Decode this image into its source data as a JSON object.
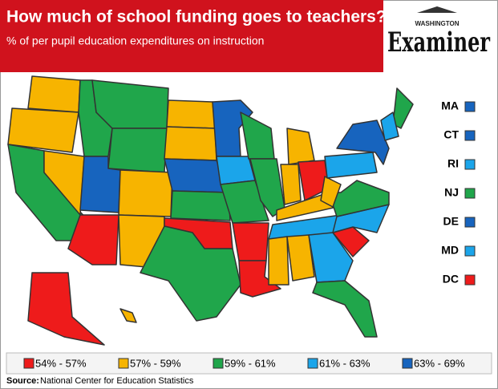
{
  "header": {
    "title": "How much of school funding goes to teachers?",
    "subtitle": "% of per pupil education expenditures on instruction"
  },
  "logo": {
    "top": "WASHINGTON",
    "name": "Examiner"
  },
  "legend": [
    {
      "label": "54% - 57%",
      "color": "#ee1b1b"
    },
    {
      "label": "57% - 59%",
      "color": "#f7b400"
    },
    {
      "label": "59% - 61%",
      "color": "#20a64b"
    },
    {
      "label": "61% - 63%",
      "color": "#1ba5ea"
    },
    {
      "label": "63% - 69%",
      "color": "#1764be"
    }
  ],
  "state_bins": [
    1,
    1,
    2,
    1,
    2,
    2,
    2,
    4,
    0,
    1,
    1,
    1,
    1,
    4,
    2,
    0,
    2,
    4,
    3,
    2,
    0,
    0,
    2,
    2,
    1,
    1,
    0,
    1,
    3,
    1,
    1,
    3,
    2,
    0,
    3,
    2,
    1,
    3,
    4,
    2,
    3,
    0,
    1
  ],
  "small_states": [
    {
      "label": "MA",
      "bin": 4
    },
    {
      "label": "CT",
      "bin": 4
    },
    {
      "label": "RI",
      "bin": 3
    },
    {
      "label": "NJ",
      "bin": 2
    },
    {
      "label": "DE",
      "bin": 4
    },
    {
      "label": "MD",
      "bin": 3
    },
    {
      "label": "DC",
      "bin": 0
    }
  ],
  "source": {
    "prefix": "Source:",
    "text": "National Center for Education Statistics"
  }
}
